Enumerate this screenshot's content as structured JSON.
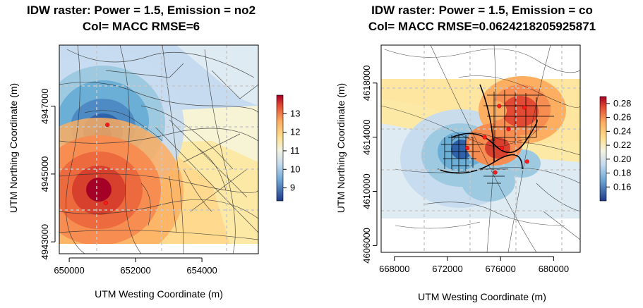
{
  "chart_data": [
    {
      "type": "heatmap",
      "title_line1": "IDW raster: Power = 1.5, Emission = no2",
      "title_line2": "Col= MACC RMSE=6",
      "xlabel": "UTM Westing Coordinate (m)",
      "ylabel": "UTM Northing Coordinate (m)",
      "xlim": [
        649700,
        655700
      ],
      "ylim": [
        942500,
        4948800
      ],
      "xticks": [
        650000,
        652000,
        654000
      ],
      "xtick_labels": [
        "650000",
        "652000",
        "654000"
      ],
      "yticks": [
        4943000,
        4945000,
        4947000
      ],
      "ytick_labels": [
        "4943000",
        "4945000",
        "4947000"
      ],
      "raster_extent": {
        "x": [
          649700,
          655600
        ],
        "y": [
          4942800,
          4948600
        ]
      },
      "colorbar": {
        "min": 8.3,
        "max": 14.0,
        "ticks": [
          9,
          10,
          11,
          12,
          13
        ],
        "tick_labels": [
          "9",
          "10",
          "11",
          "12",
          "13"
        ]
      },
      "grid": true,
      "background_value": 11.0,
      "stations": [
        {
          "x": 651150,
          "y": 4946450,
          "value": 8.3
        },
        {
          "x": 651100,
          "y": 4944150,
          "value": 14.0
        }
      ]
    },
    {
      "type": "heatmap",
      "title_line1": "IDW raster: Power = 1.5, Emission = co",
      "title_line2": "Col= MACC RMSE=0.0624218205925871",
      "xlabel": "UTM Westing Coordinate (m)",
      "ylabel": "UTM Northing Coordinate (m)",
      "xlim": [
        667000,
        682000
      ],
      "ylim": [
        4605500,
        4620800
      ],
      "xticks": [
        668000,
        672000,
        676000,
        680000
      ],
      "xtick_labels": [
        "668000",
        "672000",
        "676000",
        "680000"
      ],
      "yticks": [
        4606000,
        4610000,
        4614000,
        4618000
      ],
      "ytick_labels": [
        "4606000",
        "4610000",
        "4614000",
        "4618000"
      ],
      "raster_extent": {
        "x": [
          667000,
          681800
        ],
        "y": [
          4607600,
          4618400
        ]
      },
      "colorbar": {
        "min": 0.14,
        "max": 0.29,
        "ticks": [
          0.16,
          0.18,
          0.2,
          0.22,
          0.24,
          0.26,
          0.28
        ],
        "tick_labels": [
          "0.16",
          "0.18",
          "0.20",
          "0.22",
          "0.24",
          "0.26",
          "0.28"
        ]
      },
      "grid": true,
      "background_value": 0.21,
      "stations": [
        {
          "x": 673500,
          "y": 4613200,
          "value": 0.14
        },
        {
          "x": 674800,
          "y": 4614000,
          "value": 0.27
        },
        {
          "x": 676100,
          "y": 4613200,
          "value": 0.29
        },
        {
          "x": 675900,
          "y": 4616300,
          "value": 0.25
        },
        {
          "x": 677800,
          "y": 4616200,
          "value": 0.29
        },
        {
          "x": 676600,
          "y": 4614600,
          "value": 0.27
        },
        {
          "x": 675600,
          "y": 4611400,
          "value": 0.16
        },
        {
          "x": 678000,
          "y": 4612200,
          "value": 0.17
        }
      ]
    }
  ]
}
